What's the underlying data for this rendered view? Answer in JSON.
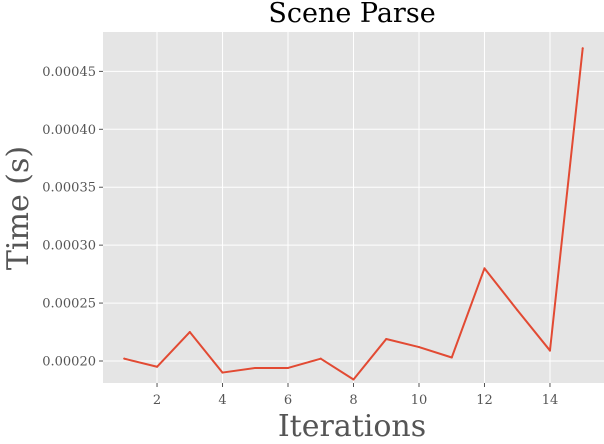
{
  "chart_data": {
    "type": "line",
    "title": "Scene Parse",
    "xlabel": "Iterations",
    "ylabel": "Time (s)",
    "xlim": [
      0.35,
      15.65
    ],
    "ylim": [
      0.000181,
      0.000484
    ],
    "xticks": [
      2,
      4,
      6,
      8,
      10,
      12,
      14
    ],
    "xtick_labels": [
      "2",
      "4",
      "6",
      "8",
      "10",
      "12",
      "14"
    ],
    "yticks": [
      0.0002,
      0.00025,
      0.0003,
      0.00035,
      0.0004,
      0.00045
    ],
    "ytick_labels": [
      "0.00020",
      "0.00025",
      "0.00030",
      "0.00035",
      "0.00040",
      "0.00045"
    ],
    "grid": true,
    "series": [
      {
        "color": "#e24a33",
        "x": [
          1,
          2,
          3,
          4,
          5,
          6,
          7,
          8,
          9,
          10,
          11,
          12,
          13,
          14,
          15
        ],
        "y": [
          0.000202,
          0.000195,
          0.000225,
          0.00019,
          0.000194,
          0.000194,
          0.000202,
          0.000184,
          0.000219,
          0.000212,
          0.000203,
          0.00028,
          0.000244,
          0.000209,
          0.00047
        ]
      }
    ]
  }
}
